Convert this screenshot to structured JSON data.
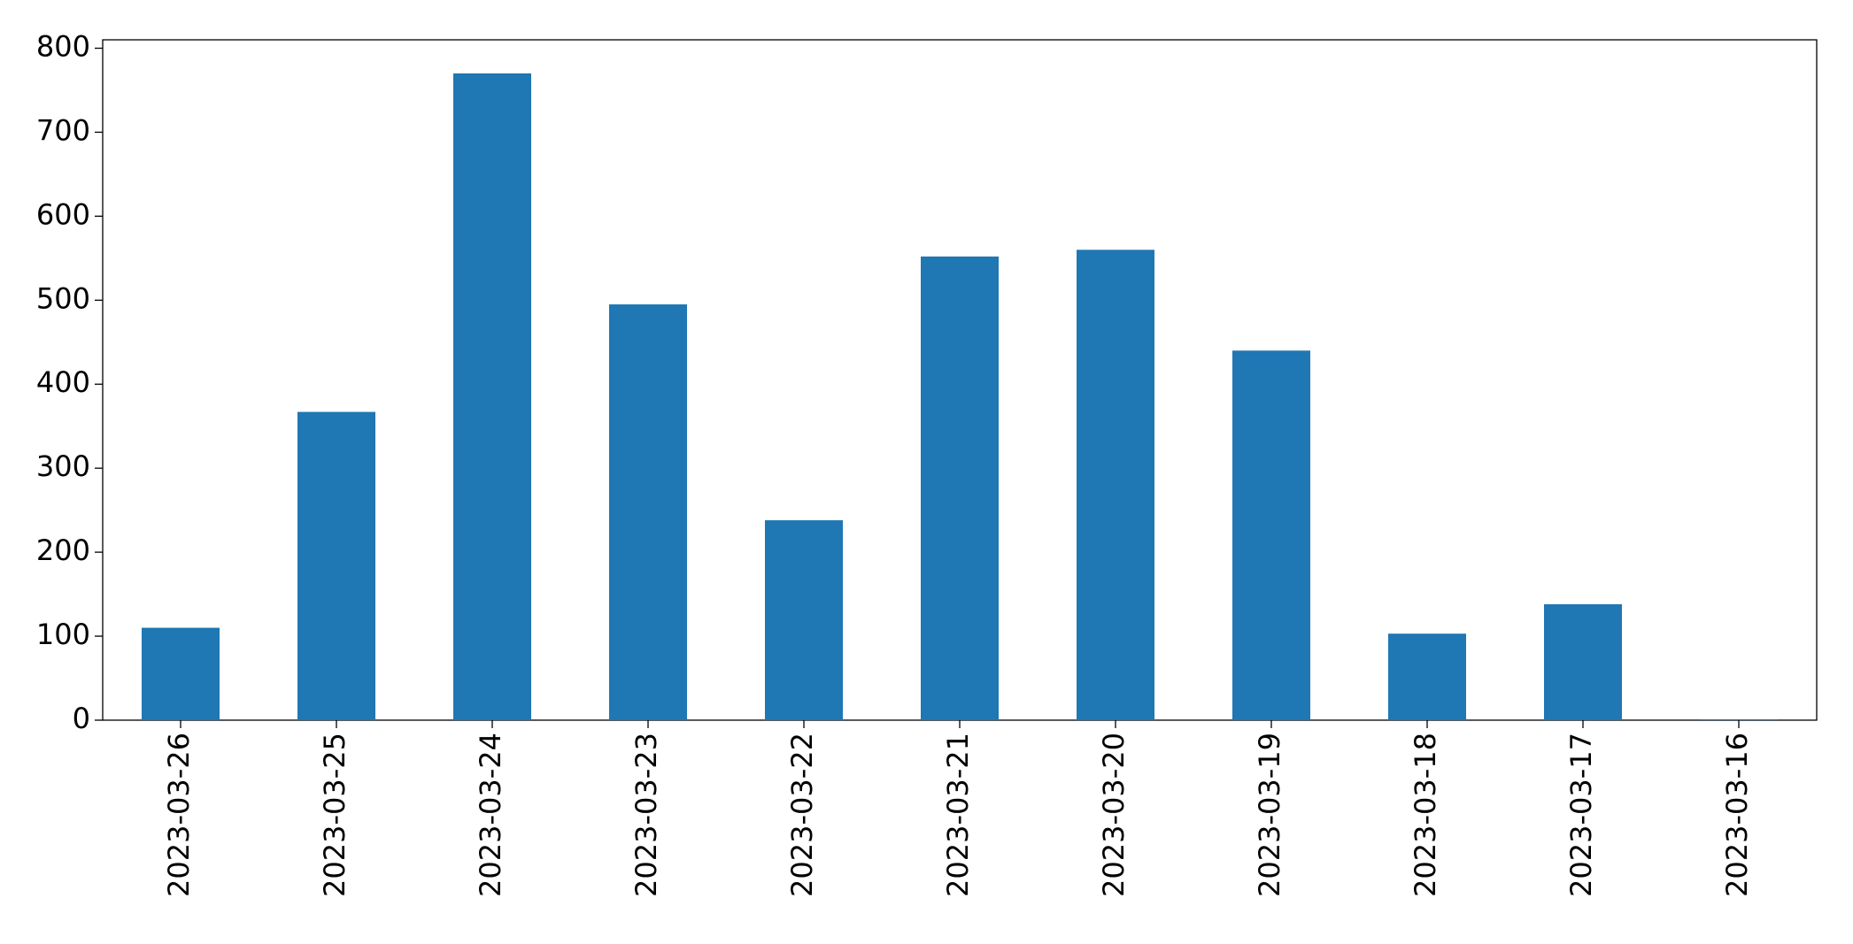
{
  "chart_data": {
    "type": "bar",
    "categories": [
      "2023-03-26",
      "2023-03-25",
      "2023-03-24",
      "2023-03-23",
      "2023-03-22",
      "2023-03-21",
      "2023-03-20",
      "2023-03-19",
      "2023-03-18",
      "2023-03-17",
      "2023-03-16"
    ],
    "values": [
      110,
      367,
      770,
      495,
      238,
      552,
      560,
      440,
      103,
      138,
      1
    ],
    "color": "#1f77b4",
    "ylim": [
      0,
      810
    ],
    "yticks": [
      0,
      100,
      200,
      300,
      400,
      500,
      600,
      700,
      800
    ],
    "grid": false
  }
}
